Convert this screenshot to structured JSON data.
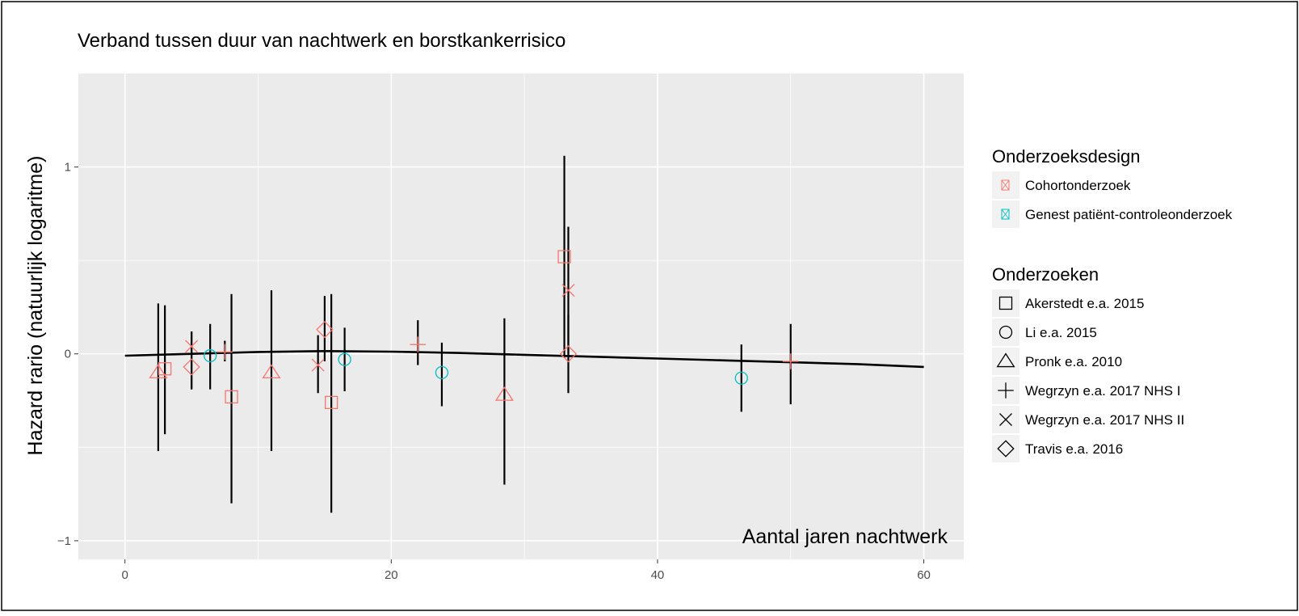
{
  "chart_data": {
    "type": "scatter",
    "title": "Verband tussen duur van nachtwerk en borstkankerrisico",
    "xlabel": "Aantal jaren nachtwerk",
    "ylabel": "Hazard rario (natuurlijk logaritme)",
    "xlim": [
      -3.5,
      63
    ],
    "ylim": [
      -1.1,
      1.5
    ],
    "x_ticks": [
      0,
      20,
      40,
      60
    ],
    "x_tick_labels": [
      "0",
      "20",
      "40",
      "60"
    ],
    "y_ticks": [
      -1,
      0,
      1
    ],
    "y_tick_labels": [
      "−1",
      "0",
      "1"
    ],
    "grid": true,
    "legend_position": "right",
    "colors": {
      "cohort": "#F8766D",
      "case_control": "#00BFC4",
      "panel_background": "#EBEBEB",
      "grid": "#FFFFFF",
      "line": "#000000"
    },
    "legend_design": {
      "title": "Onderzoeksdesign",
      "items": [
        {
          "label": "Cohortonderzoek",
          "color": "#F8766D"
        },
        {
          "label": "Genest patiënt-controleonderzoek",
          "color": "#00BFC4"
        }
      ]
    },
    "legend_studies": {
      "title": "Onderzoeken",
      "items": [
        {
          "label": "Akerstedt e.a. 2015",
          "shape": "square"
        },
        {
          "label": "Li e.a. 2015",
          "shape": "circle"
        },
        {
          "label": "Pronk e.a. 2010",
          "shape": "triangle"
        },
        {
          "label": "Wegrzyn e.a. 2017 NHS I",
          "shape": "plus"
        },
        {
          "label": "Wegrzyn e.a. 2017 NHS II",
          "shape": "cross"
        },
        {
          "label": "Travis e.a. 2016",
          "shape": "diamond"
        }
      ]
    },
    "points": [
      {
        "x": 2.5,
        "y": -0.1,
        "lo": -0.52,
        "hi": 0.27,
        "shape": "triangle",
        "design": "cohort"
      },
      {
        "x": 3.0,
        "y": -0.08,
        "lo": -0.43,
        "hi": 0.26,
        "shape": "square",
        "design": "cohort"
      },
      {
        "x": 5.0,
        "y": 0.04,
        "lo": -0.19,
        "hi": 0.12,
        "shape": "cross",
        "design": "cohort"
      },
      {
        "x": 5.0,
        "y": -0.07,
        "lo": -0.19,
        "hi": 0.12,
        "shape": "diamond",
        "design": "cohort"
      },
      {
        "x": 6.4,
        "y": -0.01,
        "lo": -0.19,
        "hi": 0.16,
        "shape": "circle",
        "design": "case_control"
      },
      {
        "x": 7.5,
        "y": 0.01,
        "lo": -0.04,
        "hi": 0.07,
        "shape": "plus",
        "design": "cohort"
      },
      {
        "x": 8.0,
        "y": -0.23,
        "lo": -0.8,
        "hi": 0.32,
        "shape": "square",
        "design": "cohort"
      },
      {
        "x": 11.0,
        "y": -0.1,
        "lo": -0.52,
        "hi": 0.34,
        "shape": "triangle",
        "design": "cohort"
      },
      {
        "x": 14.5,
        "y": -0.06,
        "lo": -0.21,
        "hi": 0.1,
        "shape": "cross",
        "design": "cohort"
      },
      {
        "x": 15.0,
        "y": 0.13,
        "lo": -0.04,
        "hi": 0.31,
        "shape": "diamond",
        "design": "cohort"
      },
      {
        "x": 15.5,
        "y": -0.26,
        "lo": -0.85,
        "hi": 0.32,
        "shape": "square",
        "design": "cohort"
      },
      {
        "x": 16.5,
        "y": -0.03,
        "lo": -0.2,
        "hi": 0.14,
        "shape": "circle",
        "design": "case_control"
      },
      {
        "x": 22.0,
        "y": 0.05,
        "lo": -0.06,
        "hi": 0.18,
        "shape": "plus",
        "design": "cohort"
      },
      {
        "x": 23.8,
        "y": -0.1,
        "lo": -0.28,
        "hi": 0.06,
        "shape": "circle",
        "design": "case_control"
      },
      {
        "x": 28.5,
        "y": -0.22,
        "lo": -0.7,
        "hi": 0.19,
        "shape": "triangle",
        "design": "cohort"
      },
      {
        "x": 33.0,
        "y": 0.52,
        "lo": -0.02,
        "hi": 1.06,
        "shape": "square",
        "design": "cohort"
      },
      {
        "x": 33.3,
        "y": 0.34,
        "lo": 0.0,
        "hi": 0.68,
        "shape": "cross",
        "design": "cohort"
      },
      {
        "x": 33.3,
        "y": 0.0,
        "lo": -0.21,
        "hi": 0.21,
        "shape": "diamond",
        "design": "cohort"
      },
      {
        "x": 46.3,
        "y": -0.13,
        "lo": -0.31,
        "hi": 0.05,
        "shape": "circle",
        "design": "case_control"
      },
      {
        "x": 50.0,
        "y": -0.04,
        "lo": -0.27,
        "hi": 0.16,
        "shape": "plus",
        "design": "cohort"
      }
    ],
    "trend_line": {
      "x": [
        0,
        5,
        10,
        15,
        20,
        25,
        30,
        35,
        40,
        45,
        50,
        55,
        60
      ],
      "y": [
        -0.01,
        0.0,
        0.01,
        0.015,
        0.012,
        0.005,
        -0.005,
        -0.015,
        -0.025,
        -0.035,
        -0.045,
        -0.055,
        -0.07
      ]
    }
  }
}
